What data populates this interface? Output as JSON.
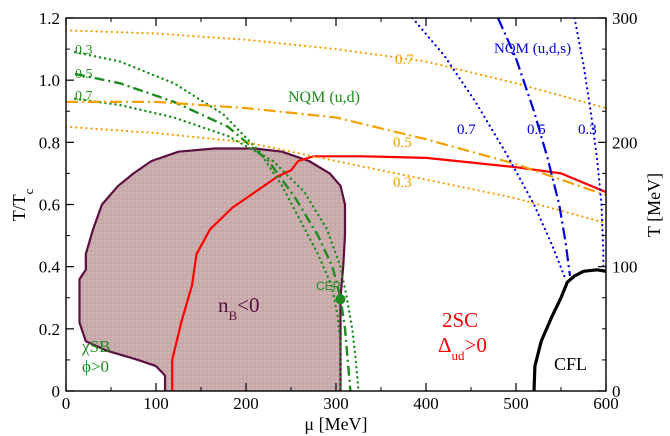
{
  "chart_data": {
    "type": "line",
    "xlabel": "μ [MeV]",
    "ylabel_left": "T/T_c",
    "ylabel_right": "T [MeV]",
    "xlim": [
      0,
      600
    ],
    "ylim_left": [
      0,
      1.2
    ],
    "ylim_right": [
      0,
      300
    ],
    "x_ticks": [
      "0",
      "100",
      "200",
      "300",
      "400",
      "500",
      "600"
    ],
    "y_ticks_left": [
      "0",
      "0.2",
      "0.4",
      "0.6",
      "0.8",
      "1.0",
      "1.2"
    ],
    "y_ticks_right": [
      "0",
      "100",
      "200",
      "300"
    ],
    "colors": {
      "nb_region_fill": "#c8a9aa",
      "nb_region_edge": "#5a1040",
      "twosc": "#ff0000",
      "nqm_ud": "#1e8c1e",
      "nqm_uds": "#0000dd",
      "orange": "#f5a000",
      "cfl": "#000000"
    },
    "series": [
      {
        "name": "n_B<0 boundary",
        "style": "solid",
        "points": [
          [
            110,
            0
          ],
          [
            110,
            0.05
          ],
          [
            100,
            0.08
          ],
          [
            80,
            0.1
          ],
          [
            45,
            0.13
          ],
          [
            22,
            0.16
          ],
          [
            15,
            0.22
          ],
          [
            15,
            0.36
          ],
          [
            22,
            0.39
          ],
          [
            22,
            0.44
          ],
          [
            30,
            0.52
          ],
          [
            40,
            0.6
          ],
          [
            58,
            0.66
          ],
          [
            75,
            0.7
          ],
          [
            95,
            0.74
          ],
          [
            125,
            0.77
          ],
          [
            165,
            0.78
          ],
          [
            210,
            0.78
          ],
          [
            240,
            0.77
          ],
          [
            270,
            0.74
          ],
          [
            293,
            0.7
          ],
          [
            305,
            0.66
          ],
          [
            310,
            0.6
          ],
          [
            310,
            0.5
          ],
          [
            308,
            0.4
          ],
          [
            305,
            0.3
          ],
          [
            305,
            0.2
          ],
          [
            305,
            0.1
          ],
          [
            305,
            0
          ]
        ]
      },
      {
        "name": "2SC boundary",
        "style": "solid",
        "points": [
          [
            118,
            0
          ],
          [
            118,
            0.1
          ],
          [
            128,
            0.22
          ],
          [
            140,
            0.34
          ],
          [
            145,
            0.44
          ],
          [
            160,
            0.52
          ],
          [
            185,
            0.59
          ],
          [
            210,
            0.64
          ],
          [
            235,
            0.69
          ],
          [
            250,
            0.71
          ],
          [
            258,
            0.74
          ],
          [
            275,
            0.755
          ],
          [
            330,
            0.755
          ],
          [
            400,
            0.75
          ],
          [
            450,
            0.735
          ],
          [
            500,
            0.72
          ],
          [
            550,
            0.7
          ],
          [
            600,
            0.64
          ]
        ]
      },
      {
        "name": "NQM (u,d) 0.3",
        "style": "dotted",
        "points": [
          [
            10,
            0.94
          ],
          [
            60,
            0.92
          ],
          [
            120,
            0.88
          ],
          [
            180,
            0.82
          ],
          [
            230,
            0.74
          ],
          [
            265,
            0.64
          ],
          [
            290,
            0.52
          ],
          [
            305,
            0.4
          ],
          [
            312,
            0.3
          ],
          [
            318,
            0.2
          ],
          [
            322,
            0.1
          ],
          [
            325,
            0
          ]
        ]
      },
      {
        "name": "NQM (u,d) 0.5",
        "style": "dashdot",
        "points": [
          [
            10,
            1.02
          ],
          [
            60,
            0.99
          ],
          [
            120,
            0.93
          ],
          [
            180,
            0.85
          ],
          [
            225,
            0.74
          ],
          [
            255,
            0.62
          ],
          [
            280,
            0.5
          ],
          [
            296,
            0.4
          ],
          [
            305,
            0.3
          ],
          [
            310,
            0.2
          ],
          [
            313,
            0.1
          ],
          [
            316,
            0
          ]
        ]
      },
      {
        "name": "NQM (u,d) 0.7",
        "style": "dotted",
        "points": [
          [
            10,
            1.09
          ],
          [
            60,
            1.06
          ],
          [
            120,
            0.99
          ],
          [
            175,
            0.89
          ],
          [
            215,
            0.77
          ],
          [
            240,
            0.66
          ],
          [
            260,
            0.55
          ],
          [
            280,
            0.44
          ],
          [
            295,
            0.34
          ],
          [
            302,
            0.24
          ],
          [
            305,
            0.15
          ],
          [
            305,
            0
          ]
        ]
      },
      {
        "name": "orange 0.7",
        "style": "dotted",
        "points": [
          [
            0,
            1.16
          ],
          [
            100,
            1.15
          ],
          [
            200,
            1.13
          ],
          [
            300,
            1.1
          ],
          [
            400,
            1.06
          ],
          [
            500,
            0.99
          ],
          [
            600,
            0.91
          ]
        ]
      },
      {
        "name": "orange 0.5",
        "style": "dashdot",
        "points": [
          [
            0,
            0.93
          ],
          [
            100,
            0.93
          ],
          [
            200,
            0.91
          ],
          [
            300,
            0.88
          ],
          [
            400,
            0.81
          ],
          [
            500,
            0.73
          ],
          [
            600,
            0.63
          ]
        ]
      },
      {
        "name": "orange 0.3",
        "style": "dotted",
        "points": [
          [
            0,
            0.85
          ],
          [
            100,
            0.83
          ],
          [
            200,
            0.8
          ],
          [
            300,
            0.74
          ],
          [
            400,
            0.68
          ],
          [
            500,
            0.62
          ],
          [
            600,
            0.54
          ]
        ]
      },
      {
        "name": "NQM (u,d,s) 0.7",
        "style": "dotted",
        "points": [
          [
            385,
            1.2
          ],
          [
            420,
            1.08
          ],
          [
            455,
            0.93
          ],
          [
            490,
            0.76
          ],
          [
            520,
            0.6
          ],
          [
            540,
            0.47
          ],
          [
            555,
            0.36
          ]
        ]
      },
      {
        "name": "NQM (u,d,s) 0.5",
        "style": "dashdot",
        "points": [
          [
            480,
            1.2
          ],
          [
            500,
            1.07
          ],
          [
            520,
            0.9
          ],
          [
            535,
            0.75
          ],
          [
            548,
            0.6
          ],
          [
            555,
            0.48
          ],
          [
            560,
            0.37
          ]
        ]
      },
      {
        "name": "NQM (u,d,s) 0.3",
        "style": "dotted",
        "points": [
          [
            565,
            1.2
          ],
          [
            575,
            1.05
          ],
          [
            583,
            0.9
          ],
          [
            590,
            0.75
          ],
          [
            595,
            0.6
          ],
          [
            597,
            0.45
          ],
          [
            597,
            0.38
          ]
        ]
      },
      {
        "name": "CFL boundary",
        "style": "solid-thick",
        "points": [
          [
            520,
            0
          ],
          [
            521,
            0.08
          ],
          [
            528,
            0.16
          ],
          [
            540,
            0.24
          ],
          [
            550,
            0.3
          ],
          [
            557,
            0.35
          ],
          [
            565,
            0.37
          ],
          [
            575,
            0.385
          ],
          [
            590,
            0.39
          ],
          [
            600,
            0.385
          ]
        ]
      }
    ],
    "cep": {
      "x": 305,
      "y": 0.295
    },
    "annotations": {
      "nqm_ud": "NQM (u,d)",
      "nqm_uds": "NQM (u,d,s)",
      "cep": "CEP",
      "nb_main": "n",
      "nb_sub": "B",
      "nb_rest": "<0",
      "twosc_line1": "2SC",
      "twosc_delta": "Δ",
      "twosc_sub": "ud",
      "twosc_rest": ">0",
      "cfl": "CFL",
      "chisb": "χSB",
      "phi": "ϕ>0",
      "g03": "0.3",
      "g05": "0.5",
      "g07": "0.7",
      "o07": "0.7",
      "o05": "0.5",
      "o03": "0.3",
      "b07": "0.7",
      "b05": "0.5",
      "b03": "0.3"
    }
  }
}
